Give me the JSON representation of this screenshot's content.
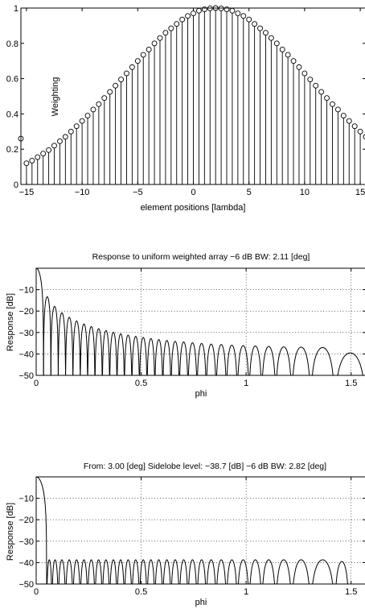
{
  "chart_data": [
    {
      "type": "stem",
      "title": "",
      "xlabel": "element positions [lambda]",
      "ylabel": "Weighting",
      "xlim": [
        -15.5,
        15.5
      ],
      "ylim": [
        0,
        1
      ],
      "xticks": [
        -15,
        -10,
        -5,
        0,
        5,
        10,
        15
      ],
      "xtick_labels": [
        "−15",
        "−10",
        "−5",
        "0",
        "5",
        "10",
        "15"
      ],
      "yticks": [
        0,
        0.2,
        0.4,
        0.6,
        0.8,
        1
      ],
      "ytick_labels": [
        "0",
        "0.2",
        "0.4",
        "0.6",
        "0.8",
        "1"
      ],
      "grid": false,
      "x_start": -15.5,
      "x_step": 0.5,
      "values": [
        0.26,
        0.12,
        0.135,
        0.155,
        0.175,
        0.195,
        0.22,
        0.245,
        0.27,
        0.3,
        0.33,
        0.36,
        0.39,
        0.425,
        0.455,
        0.49,
        0.525,
        0.56,
        0.595,
        0.63,
        0.665,
        0.7,
        0.735,
        0.765,
        0.8,
        0.83,
        0.86,
        0.885,
        0.91,
        0.935,
        0.955,
        0.97,
        0.985,
        0.993,
        0.998,
        1.0,
        0.998,
        0.993,
        0.985,
        0.97,
        0.955,
        0.935,
        0.91,
        0.885,
        0.86,
        0.83,
        0.8,
        0.765,
        0.735,
        0.7,
        0.665,
        0.63,
        0.595,
        0.56,
        0.525,
        0.49,
        0.455,
        0.425,
        0.39,
        0.36,
        0.33,
        0.3,
        0.27,
        0.245,
        0.22,
        0.195,
        0.175,
        0.155,
        0.135,
        0.12,
        0.26
      ]
    },
    {
      "type": "line",
      "title": "Response to uniform weighted array   −6 dB BW: 2.11 [deg]",
      "xlabel": "phi",
      "ylabel": "Response [dB]",
      "xlim": [
        0,
        1.57
      ],
      "ylim": [
        -50,
        0
      ],
      "xticks": [
        0,
        0.5,
        1,
        1.5
      ],
      "xtick_labels": [
        "0",
        "0.5",
        "1",
        "1.5"
      ],
      "yticks": [
        -10,
        -20,
        -30,
        -40,
        -50
      ],
      "ytick_labels": [
        "−10",
        "−20",
        "−30",
        "−40",
        "−50"
      ],
      "grid": true,
      "null_phi": [
        0.035,
        0.07,
        0.105,
        0.14,
        0.175,
        0.21,
        0.245,
        0.28,
        0.315,
        0.35,
        0.385,
        0.42,
        0.456,
        0.492,
        0.528,
        0.565,
        0.603,
        0.642,
        0.682,
        0.723,
        0.766,
        0.81,
        0.857,
        0.906,
        0.958,
        1.014,
        1.074,
        1.141,
        1.217,
        1.307,
        1.422,
        1.57
      ],
      "lobe_peak_db": [
        0,
        -13.3,
        -17.8,
        -20.8,
        -22.9,
        -24.6,
        -26,
        -27.2,
        -28.2,
        -29.1,
        -29.9,
        -30.6,
        -31.2,
        -31.8,
        -32.3,
        -32.8,
        -33.3,
        -33.7,
        -34.1,
        -34.4,
        -34.8,
        -35.1,
        -35.4,
        -35.6,
        -35.9,
        -36.1,
        -36.3,
        -36.5,
        -36.7,
        -36.8,
        -37,
        -39.5
      ]
    },
    {
      "type": "line",
      "title": "From: 3.00 [deg]   Sidelobe level: −38.7 [dB]   −6 dB BW: 2.82 [deg]",
      "xlabel": "phi",
      "ylabel": "Response [dB]",
      "xlim": [
        0,
        1.57
      ],
      "ylim": [
        -50,
        0
      ],
      "xticks": [
        0,
        0.5,
        1,
        1.5
      ],
      "xtick_labels": [
        "0",
        "0.5",
        "1",
        "1.5"
      ],
      "yticks": [
        -10,
        -20,
        -30,
        -40,
        -50
      ],
      "ytick_labels": [
        "−10",
        "−20",
        "−30",
        "−40",
        "−50"
      ],
      "grid": true,
      "null_phi": [
        0.05,
        0.075,
        0.105,
        0.14,
        0.175,
        0.21,
        0.245,
        0.28,
        0.315,
        0.35,
        0.385,
        0.42,
        0.456,
        0.492,
        0.528,
        0.565,
        0.603,
        0.642,
        0.682,
        0.723,
        0.766,
        0.81,
        0.857,
        0.906,
        0.958,
        1.014,
        1.074,
        1.141,
        1.217,
        1.307,
        1.422,
        1.49
      ],
      "lobe_peak_db": [
        0,
        -38.7,
        -38.7,
        -38.7,
        -38.7,
        -38.7,
        -38.7,
        -38.7,
        -38.7,
        -38.7,
        -38.7,
        -38.7,
        -38.7,
        -38.7,
        -38.7,
        -38.7,
        -38.7,
        -38.7,
        -38.7,
        -38.7,
        -38.7,
        -38.7,
        -38.7,
        -38.7,
        -38.7,
        -38.7,
        -38.7,
        -38.7,
        -38.7,
        -38.7,
        -38.7,
        -39.5
      ]
    }
  ]
}
